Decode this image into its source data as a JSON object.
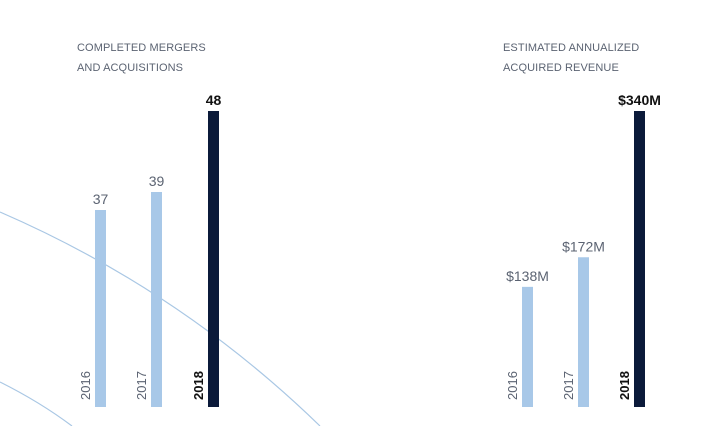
{
  "colors": {
    "past_bar": "#a8c8e8",
    "current_bar": "#0b1a3a",
    "label": "#5b6372",
    "current_label": "#111111",
    "decor_line": "#a9c7e4"
  },
  "chart_data": [
    {
      "type": "bar",
      "title_lines": [
        "COMPLETED MERGERS",
        "AND ACQUISITIONS"
      ],
      "categories": [
        "2016",
        "2017",
        "2018"
      ],
      "values": [
        37,
        39,
        48
      ],
      "value_labels": [
        "37",
        "39",
        "48"
      ],
      "highlight": "2018",
      "xlabel": "",
      "ylabel": "",
      "grid": false
    },
    {
      "type": "bar",
      "title_lines": [
        "ESTIMATED ANNUALIZED",
        "ACQUIRED REVENUE"
      ],
      "categories": [
        "2016",
        "2017",
        "2018"
      ],
      "values": [
        138,
        172,
        340
      ],
      "value_labels": [
        "$138M",
        "$172M",
        "$340M"
      ],
      "unit": "USD millions",
      "highlight": "2018",
      "xlabel": "",
      "ylabel": "",
      "grid": false
    }
  ]
}
